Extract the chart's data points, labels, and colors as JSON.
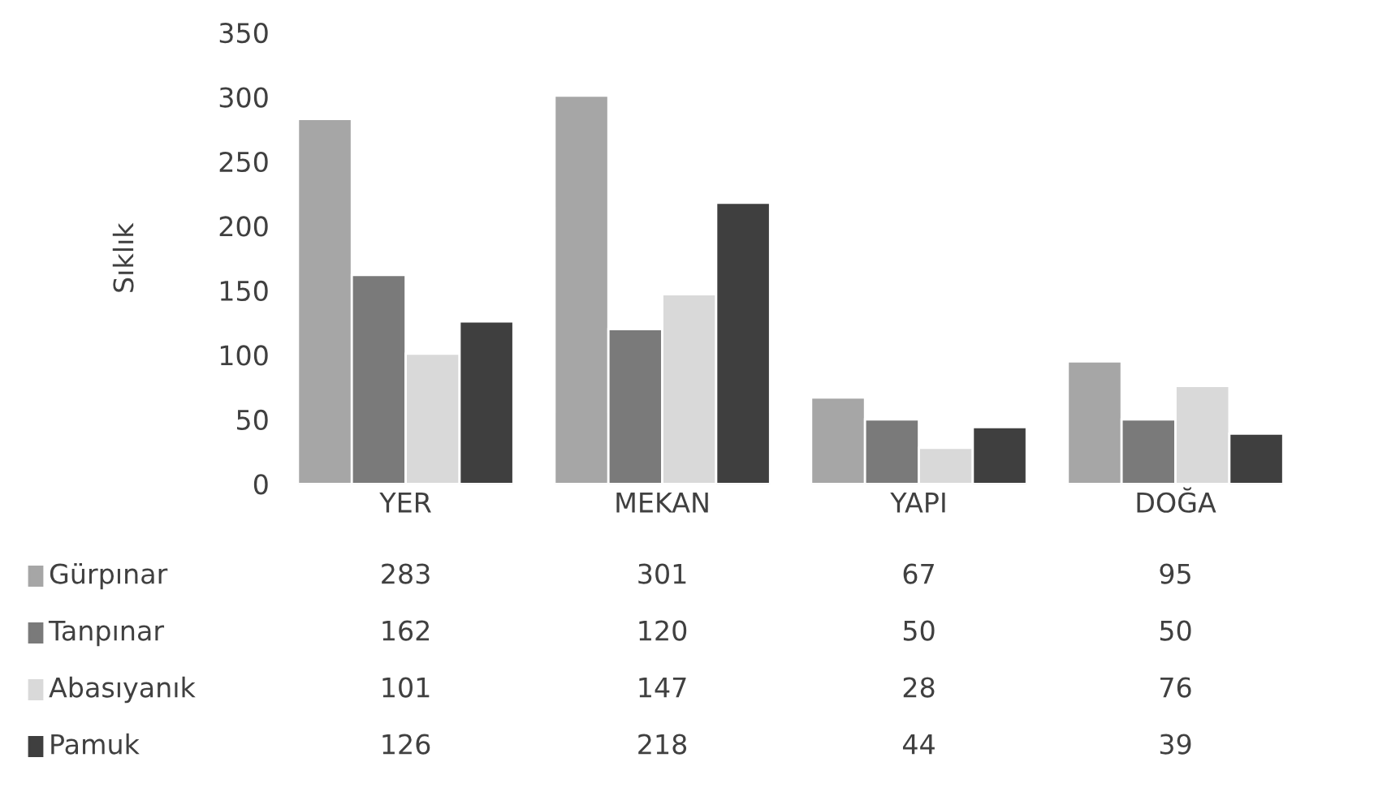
{
  "chart_data": {
    "type": "bar",
    "ylabel": "Sıklık",
    "categories": [
      "YER",
      "MEKAN",
      "YAPI",
      "DOĞA"
    ],
    "series": [
      {
        "name": "Gürpınar",
        "color": "#a6a6a6",
        "values": [
          283,
          301,
          67,
          95
        ]
      },
      {
        "name": "Tanpınar",
        "color": "#7a7a7a",
        "values": [
          162,
          120,
          50,
          50
        ]
      },
      {
        "name": "Abasıyanık",
        "color": "#d9d9d9",
        "values": [
          101,
          147,
          28,
          76
        ]
      },
      {
        "name": "Pamuk",
        "color": "#3f3f3f",
        "values": [
          126,
          218,
          44,
          39
        ]
      }
    ],
    "ylim": [
      0,
      350
    ],
    "yticks": [
      0,
      50,
      100,
      150,
      200,
      250,
      300,
      350
    ],
    "data_labels": true,
    "grid": false,
    "legend": "bottom"
  }
}
